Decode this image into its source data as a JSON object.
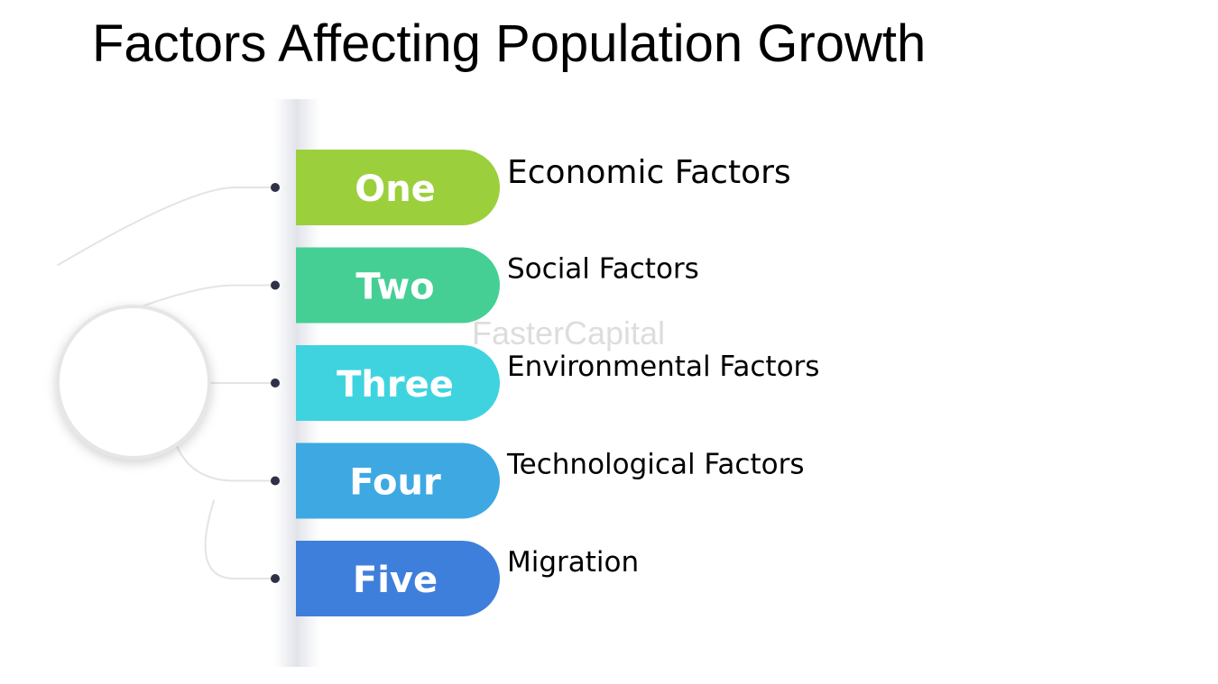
{
  "title": "Factors Affecting Population Growth",
  "items": [
    {
      "label": "One",
      "text": "Economic Factors",
      "color": "#9ccf3c"
    },
    {
      "label": "Two",
      "text": "Social Factors",
      "color": "#45cf95"
    },
    {
      "label": "Three",
      "text": "Environmental Factors",
      "color": "#3fd3e0"
    },
    {
      "label": "Four",
      "text": "Technological Factors",
      "color": "#3ea8e3"
    },
    {
      "label": "Five",
      "text": "Migration",
      "color": "#3f7fdc"
    }
  ],
  "watermark": "FasterCapital"
}
